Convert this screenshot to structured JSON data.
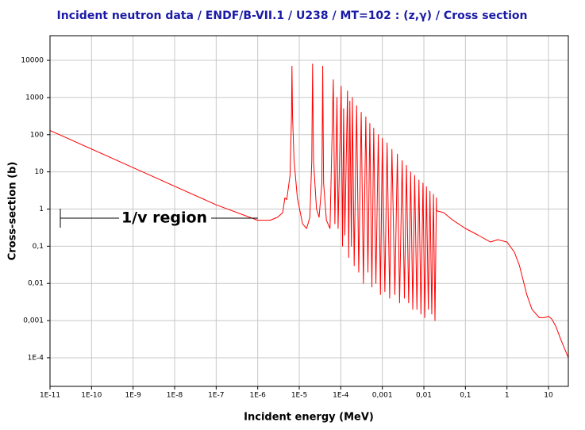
{
  "chart_data": {
    "type": "line",
    "title": "Incident neutron data / ENDF/B-VII.1 / U238 / MT=102 : (z,γ) / Cross section",
    "xlabel": "Incident energy (MeV)",
    "ylabel": "Cross-section (b)",
    "annotation": "1/v region",
    "xscale": "log",
    "yscale": "log",
    "grid": true,
    "color": "#ff0000",
    "xlim": [
      1e-11,
      30
    ],
    "ylim": [
      1.7e-05,
      46000
    ],
    "xticks": [
      {
        "value": 1e-11,
        "label": "1E-11"
      },
      {
        "value": 1e-10,
        "label": "1E-10"
      },
      {
        "value": 1e-09,
        "label": "1E-9"
      },
      {
        "value": 1e-08,
        "label": "1E-8"
      },
      {
        "value": 1e-07,
        "label": "1E-7"
      },
      {
        "value": 1e-06,
        "label": "1E-6"
      },
      {
        "value": 1e-05,
        "label": "1E-5"
      },
      {
        "value": 0.0001,
        "label": "1E-4"
      },
      {
        "value": 0.001,
        "label": "0,001"
      },
      {
        "value": 0.01,
        "label": "0,01"
      },
      {
        "value": 0.1,
        "label": "0,1"
      },
      1,
      10
    ],
    "yticks": [
      {
        "value": 0.0001,
        "label": "1E-4"
      },
      {
        "value": 0.001,
        "label": "0,001"
      },
      {
        "value": 0.01,
        "label": "0,01"
      },
      {
        "value": 0.1,
        "label": "0,1"
      },
      1,
      10,
      100,
      1000,
      10000
    ],
    "x": [
      1e-11,
      1e-09,
      1e-07,
      1e-06,
      2e-06,
      3e-06,
      4e-06,
      4.5e-06,
      5e-06,
      6e-06,
      6.5e-06,
      6.67e-06,
      6.9e-06,
      7.5e-06,
      9e-06,
      1.2e-05,
      1.5e-05,
      1.8e-05,
      2e-05,
      2.09e-05,
      2.2e-05,
      2.6e-05,
      3e-05,
      3.5e-05,
      3.67e-05,
      3.85e-05,
      4.5e-05,
      5.5e-05,
      6.6e-05,
      7.2e-05,
      8.1e-05,
      8.6e-05,
      0.000102,
      0.00011,
      0.000117,
      0.000125,
      0.000145,
      0.000155,
      0.000165,
      0.00018,
      0.00019,
      0.00021,
      0.00024,
      0.00027,
      0.00031,
      0.00035,
      0.0004,
      0.00045,
      0.0005,
      0.00056,
      0.00062,
      0.0007,
      0.0008,
      0.0009,
      0.001,
      0.00115,
      0.0013,
      0.0015,
      0.0017,
      0.002,
      0.0023,
      0.0026,
      0.003,
      0.0034,
      0.0038,
      0.0043,
      0.0048,
      0.0054,
      0.006,
      0.0068,
      0.0076,
      0.0085,
      0.0095,
      0.0105,
      0.0115,
      0.0128,
      0.014,
      0.0155,
      0.017,
      0.0185,
      0.02,
      0.0201,
      0.03,
      0.05,
      0.1,
      0.2,
      0.4,
      0.6,
      1,
      1.5,
      2,
      3,
      4,
      6,
      8,
      10,
      12,
      15,
      20,
      30
    ],
    "values": [
      130,
      13,
      1.3,
      0.5,
      0.5,
      0.6,
      0.8,
      2,
      1.8,
      8,
      300,
      7000,
      300,
      20,
      2,
      0.4,
      0.3,
      0.6,
      20,
      8000,
      20,
      1,
      0.6,
      5,
      7000,
      5,
      0.5,
      0.3,
      3000,
      0.4,
      1000,
      0.3,
      2000,
      0.1,
      500,
      0.2,
      1500,
      0.05,
      800,
      0.1,
      1000,
      0.03,
      600,
      0.02,
      400,
      0.01,
      300,
      0.02,
      200,
      0.008,
      150,
      0.01,
      100,
      0.005,
      80,
      0.006,
      60,
      0.004,
      40,
      0.005,
      30,
      0.003,
      20,
      0.004,
      15,
      0.003,
      10,
      0.002,
      8,
      0.002,
      6,
      0.0015,
      5,
      0.0012,
      4,
      0.002,
      3,
      0.0015,
      2.5,
      0.001,
      2,
      0.9,
      0.8,
      0.5,
      0.3,
      0.2,
      0.13,
      0.15,
      0.13,
      0.07,
      0.03,
      0.005,
      0.002,
      0.0012,
      0.0012,
      0.0013,
      0.0011,
      0.0007,
      0.0003,
      0.0001
    ]
  }
}
